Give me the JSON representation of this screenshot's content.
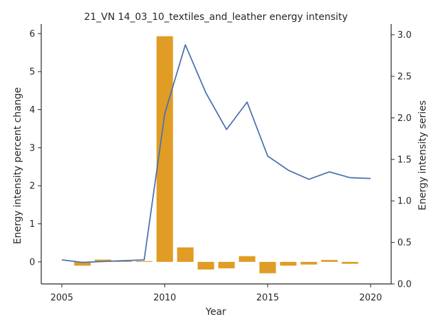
{
  "chart_data": {
    "type": "bar",
    "title": "21_VN 14_03_10_textiles_and_leather energy intensity",
    "xlabel": "Year",
    "ylabel": "Energy intensity percent change",
    "ylabel_right": "Energy intensity series",
    "xlim": [
      2004,
      2021
    ],
    "ylim": [
      -0.58,
      6.25
    ],
    "ylim_right": [
      0.0,
      3.13
    ],
    "x_ticks": [
      2005,
      2010,
      2015,
      2020
    ],
    "y_ticks": [
      0,
      1,
      2,
      3,
      4,
      5,
      6
    ],
    "y_ticks_right": [
      0.0,
      0.5,
      1.0,
      1.5,
      2.0,
      2.5,
      3.0
    ],
    "grid": false,
    "colors": {
      "bars": "#e09c24",
      "line": "#4c72b0",
      "axes": "#262626"
    },
    "series": [
      {
        "type": "bar",
        "axis": "left",
        "x": [
          2006,
          2007,
          2008,
          2009,
          2010,
          2011,
          2012,
          2013,
          2014,
          2015,
          2016,
          2017,
          2018,
          2019
        ],
        "values": [
          -0.1,
          0.06,
          0.02,
          0.02,
          5.93,
          0.38,
          -0.2,
          -0.17,
          0.15,
          -0.3,
          -0.1,
          -0.07,
          0.05,
          -0.05
        ]
      },
      {
        "type": "line",
        "axis": "right",
        "x": [
          2005,
          2006,
          2007,
          2008,
          2009,
          2010,
          2011,
          2012,
          2013,
          2014,
          2015,
          2016,
          2017,
          2018,
          2019,
          2020
        ],
        "values": [
          0.29,
          0.26,
          0.27,
          0.28,
          0.29,
          2.05,
          2.88,
          2.3,
          1.86,
          2.19,
          1.54,
          1.37,
          1.26,
          1.35,
          1.28,
          1.27
        ]
      }
    ]
  }
}
